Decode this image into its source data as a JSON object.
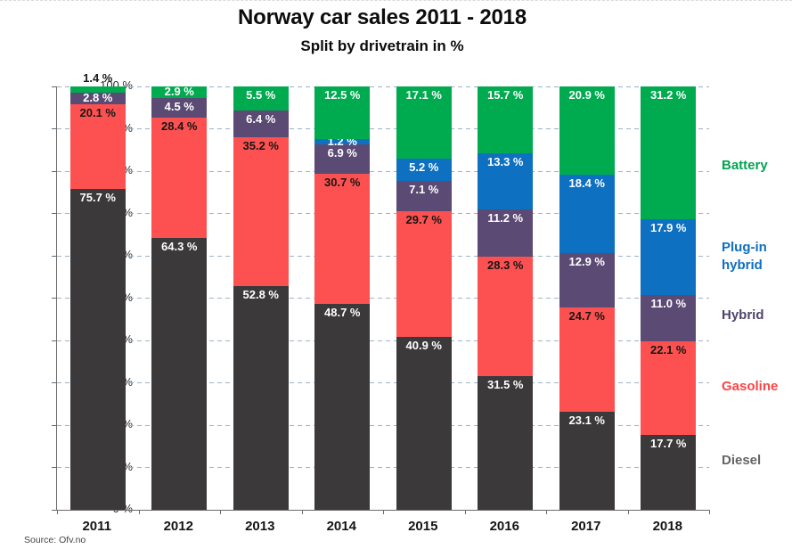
{
  "title": "Norway car sales 2011 - 2018",
  "subtitle": "Split by drivetrain in %",
  "source": "Source: Ofv.no",
  "chart_data": {
    "type": "bar",
    "stacked": true,
    "title": "Norway car sales 2011 - 2018",
    "subtitle": "Split by drivetrain in %",
    "categories": [
      "2011",
      "2012",
      "2013",
      "2014",
      "2015",
      "2016",
      "2017",
      "2018"
    ],
    "series": [
      {
        "name": "Diesel",
        "color": "#3c393b",
        "label_color": "#ffffff",
        "legend_color": "#646464",
        "values": [
          75.7,
          64.3,
          52.8,
          48.7,
          40.9,
          31.5,
          23.1,
          17.7
        ]
      },
      {
        "name": "Gasoline",
        "color": "#fc5150",
        "label_color": "#161616",
        "legend_color": "#fb4547",
        "values": [
          20.1,
          28.4,
          35.2,
          30.7,
          29.7,
          28.3,
          24.7,
          22.1
        ]
      },
      {
        "name": "Hybrid",
        "color": "#5b4a73",
        "label_color": "#ffffff",
        "legend_color": "#50436b",
        "values": [
          2.8,
          4.5,
          6.4,
          6.9,
          7.1,
          11.2,
          12.9,
          11.0
        ]
      },
      {
        "name": "Plug-in hybrid",
        "color": "#0e70c0",
        "label_color": "#ffffff",
        "legend_color": "#0d6fc0",
        "values": [
          0,
          0,
          0,
          1.2,
          5.2,
          13.3,
          18.4,
          17.9
        ]
      },
      {
        "name": "Battery",
        "color": "#00ab4f",
        "label_color": "#ffffff",
        "legend_color": "#00a550",
        "values": [
          1.4,
          2.9,
          5.5,
          12.5,
          17.1,
          15.7,
          20.9,
          31.2
        ]
      }
    ],
    "value_label_format": "{value} %",
    "ytick_format": "{value} %",
    "yticks": [
      0,
      10,
      20,
      30,
      40,
      50,
      60,
      70,
      80,
      90,
      100
    ],
    "ylim": [
      0,
      100
    ],
    "grid": "horizontal-dashed",
    "legend_position": "right",
    "gridline_color": "#9db4c7",
    "axis_color": "#6b6b6b",
    "outside_label_color": "#161616"
  }
}
